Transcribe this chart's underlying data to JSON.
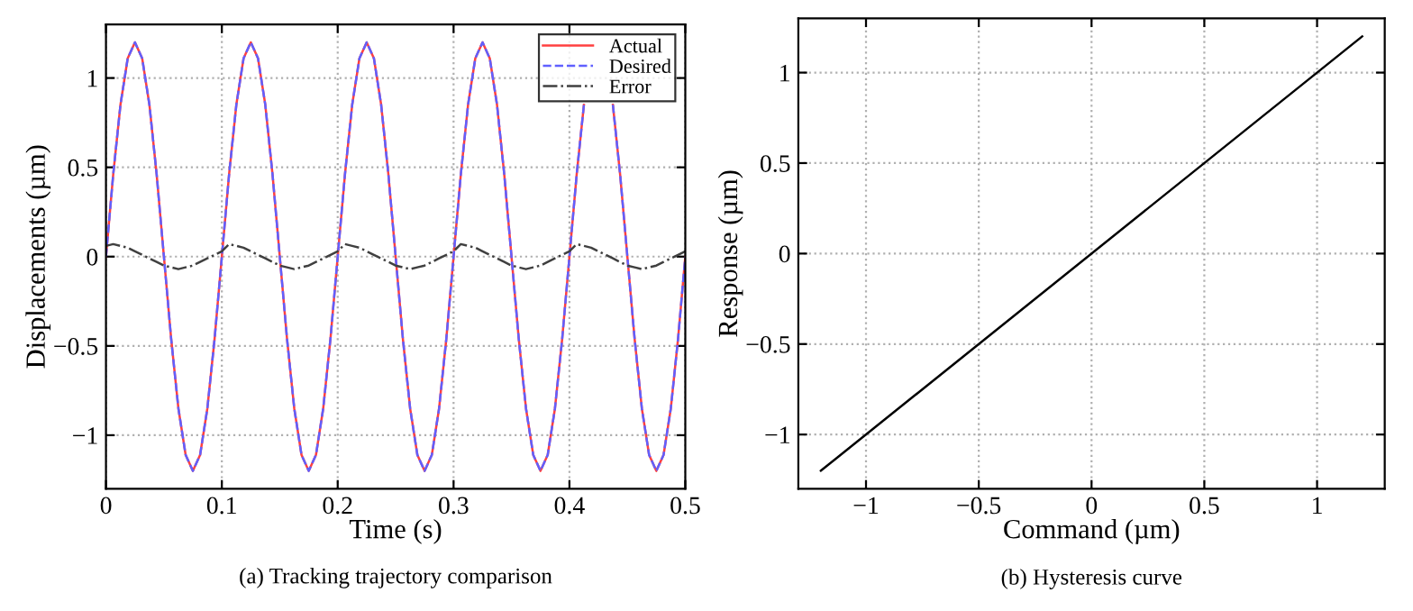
{
  "chart_data": [
    {
      "type": "line",
      "xlabel": "Time (s)",
      "ylabel": "Displacements (µm)",
      "annotations": [
        "(a) Tracking trajectory comparison"
      ],
      "xlim": [
        0,
        0.5
      ],
      "ylim": [
        -1.3,
        1.3
      ],
      "xticks": [
        0,
        0.1,
        0.2,
        0.3,
        0.4,
        0.5
      ],
      "yticks": [
        -1,
        -0.5,
        0,
        0.5,
        1
      ],
      "grid": true,
      "legend": "top right",
      "x": [
        0,
        0.00625,
        0.0125,
        0.01875,
        0.025,
        0.03125,
        0.0375,
        0.04375,
        0.05,
        0.05625,
        0.0625,
        0.06875,
        0.075,
        0.08125,
        0.0875,
        0.09375,
        0.1,
        0.10625,
        0.1125,
        0.11875,
        0.125,
        0.13125,
        0.1375,
        0.14375,
        0.15,
        0.15625,
        0.1625,
        0.16875,
        0.175,
        0.18125,
        0.1875,
        0.19375,
        0.2,
        0.20625,
        0.2125,
        0.21875,
        0.225,
        0.23125,
        0.2375,
        0.24375,
        0.25,
        0.25625,
        0.2625,
        0.26875,
        0.275,
        0.28125,
        0.2875,
        0.29375,
        0.3,
        0.30625,
        0.3125,
        0.31875,
        0.325,
        0.33125,
        0.3375,
        0.34375,
        0.35,
        0.35625,
        0.3625,
        0.36875,
        0.375,
        0.38125,
        0.3875,
        0.39375,
        0.4,
        0.40625,
        0.4125,
        0.41875,
        0.425,
        0.43125,
        0.4375,
        0.44375,
        0.45,
        0.45625,
        0.4625,
        0.46875,
        0.475,
        0.48125,
        0.4875,
        0.49375,
        0.5
      ],
      "series": [
        {
          "name": "Actual",
          "color": "#ff4040",
          "line_style": "solid",
          "values": [
            0,
            0.46,
            0.85,
            1.11,
            1.2,
            1.11,
            0.85,
            0.46,
            0,
            -0.46,
            -0.85,
            -1.11,
            -1.2,
            -1.11,
            -0.85,
            -0.46,
            0,
            0.46,
            0.85,
            1.11,
            1.2,
            1.11,
            0.85,
            0.46,
            0,
            -0.46,
            -0.85,
            -1.11,
            -1.2,
            -1.11,
            -0.85,
            -0.46,
            0,
            0.46,
            0.85,
            1.11,
            1.2,
            1.11,
            0.85,
            0.46,
            0,
            -0.46,
            -0.85,
            -1.11,
            -1.2,
            -1.11,
            -0.85,
            -0.46,
            0,
            0.46,
            0.85,
            1.11,
            1.2,
            1.11,
            0.85,
            0.46,
            0,
            -0.46,
            -0.85,
            -1.11,
            -1.2,
            -1.11,
            -0.85,
            -0.46,
            0,
            0.46,
            0.85,
            null,
            null,
            null,
            0.85,
            0.46,
            0,
            -0.46,
            -0.85,
            -1.11,
            -1.2,
            -1.11,
            -0.85,
            -0.46,
            0
          ]
        },
        {
          "name": "Desired",
          "color": "#6060ff",
          "line_style": "dashed",
          "values": [
            0,
            0.46,
            0.85,
            1.11,
            1.2,
            1.11,
            0.85,
            0.46,
            0,
            -0.46,
            -0.85,
            -1.11,
            -1.2,
            -1.11,
            -0.85,
            -0.46,
            0,
            0.46,
            0.85,
            1.11,
            1.2,
            1.11,
            0.85,
            0.46,
            0,
            -0.46,
            -0.85,
            -1.11,
            -1.2,
            -1.11,
            -0.85,
            -0.46,
            0,
            0.46,
            0.85,
            1.11,
            1.2,
            1.11,
            0.85,
            0.46,
            0,
            -0.46,
            -0.85,
            -1.11,
            -1.2,
            -1.11,
            -0.85,
            -0.46,
            0,
            0.46,
            0.85,
            1.11,
            1.2,
            1.11,
            0.85,
            0.46,
            0,
            -0.46,
            -0.85,
            -1.11,
            -1.2,
            -1.11,
            -0.85,
            -0.46,
            0,
            0.46,
            0.85,
            null,
            null,
            null,
            0.85,
            0.46,
            0,
            -0.46,
            -0.85,
            -1.11,
            -1.2,
            -1.11,
            -0.85,
            -0.46,
            0
          ]
        },
        {
          "name": "Error",
          "color": "#404040",
          "line_style": "dashdot",
          "values": [
            0.06,
            0.07,
            0.06,
            0.05,
            0.03,
            0.01,
            -0.01,
            -0.03,
            -0.05,
            -0.06,
            -0.07,
            -0.06,
            -0.05,
            -0.03,
            -0.01,
            0.01,
            0.03,
            0.07,
            0.06,
            0.05,
            0.03,
            0.01,
            -0.01,
            -0.03,
            -0.05,
            -0.06,
            -0.07,
            -0.06,
            -0.05,
            -0.03,
            -0.01,
            0.01,
            0.03,
            0.07,
            0.06,
            0.05,
            0.03,
            0.01,
            -0.01,
            -0.03,
            -0.05,
            -0.06,
            -0.07,
            -0.06,
            -0.05,
            -0.03,
            -0.01,
            0.01,
            0.03,
            0.07,
            0.06,
            0.05,
            0.03,
            0.01,
            -0.01,
            -0.03,
            -0.05,
            -0.06,
            -0.07,
            -0.06,
            -0.05,
            -0.03,
            -0.01,
            0.01,
            0.03,
            0.07,
            0.06,
            0.05,
            0.03,
            0.01,
            -0.01,
            -0.03,
            -0.05,
            -0.06,
            -0.07,
            -0.06,
            -0.05,
            -0.03,
            -0.01,
            0.01,
            0.03
          ]
        }
      ]
    },
    {
      "type": "line",
      "xlabel": "Command (µm)",
      "ylabel": "Response (µm)",
      "annotations": [
        "(b) Hysteresis curve"
      ],
      "xlim": [
        -1.3,
        1.3
      ],
      "ylim": [
        -1.3,
        1.3
      ],
      "xticks": [
        -1,
        -0.5,
        0,
        0.5,
        1
      ],
      "yticks": [
        -1,
        -0.5,
        0,
        0.5,
        1
      ],
      "grid": true,
      "x": [
        -1.2,
        1.2
      ],
      "series": [
        {
          "color": "#000000",
          "line_style": "solid",
          "values": [
            -1.2,
            1.2
          ]
        }
      ]
    }
  ]
}
